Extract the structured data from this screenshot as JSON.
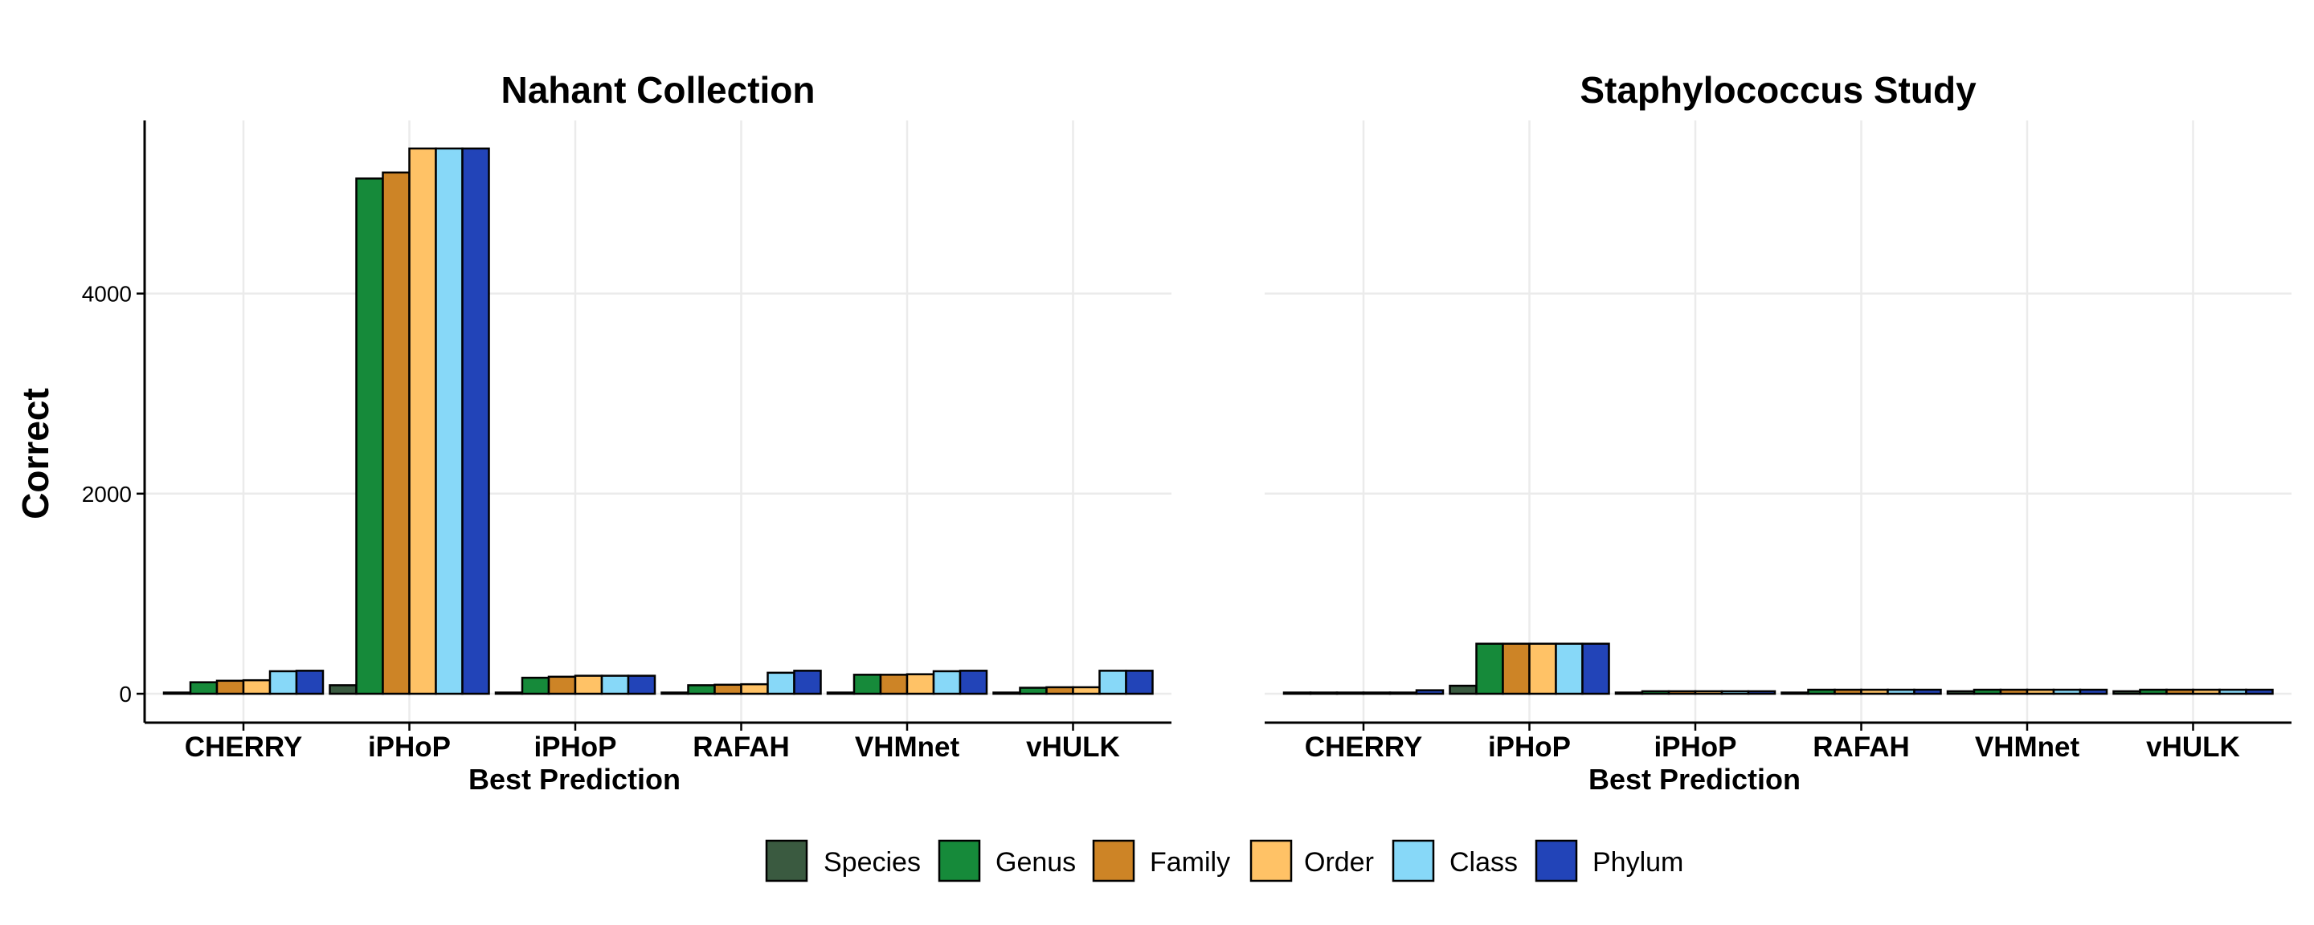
{
  "chart_data": [
    {
      "type": "bar",
      "title": "Nahant Collection",
      "xlabel": "Best Prediction",
      "ylabel": "Correct",
      "ylim": [
        0,
        5450
      ],
      "yticks": [
        0,
        2000,
        4000
      ],
      "grid": true,
      "categories": [
        "CHERRY",
        "iPHoP",
        "iPHoP",
        "RAFAH",
        "VHMnet",
        "vHULK"
      ],
      "series": [
        {
          "name": "Species",
          "color": "#3A5A40",
          "values": [
            2,
            85,
            0,
            0,
            0,
            0
          ]
        },
        {
          "name": "Genus",
          "color": "#168A3A",
          "values": [
            115,
            5150,
            160,
            85,
            190,
            60
          ]
        },
        {
          "name": "Family",
          "color": "#CD8426",
          "values": [
            130,
            5210,
            170,
            90,
            190,
            65
          ]
        },
        {
          "name": "Order",
          "color": "#FFC266",
          "values": [
            135,
            5450,
            180,
            95,
            195,
            65
          ]
        },
        {
          "name": "Class",
          "color": "#87D8F8",
          "values": [
            225,
            5450,
            180,
            210,
            225,
            230
          ]
        },
        {
          "name": "Phylum",
          "color": "#2244B8",
          "values": [
            230,
            5450,
            180,
            230,
            230,
            230
          ]
        }
      ]
    },
    {
      "type": "bar",
      "title": "Staphylococcus Study",
      "xlabel": "Best Prediction",
      "ylabel": "Correct",
      "ylim": [
        0,
        5450
      ],
      "yticks": [
        0,
        2000,
        4000
      ],
      "grid": true,
      "categories": [
        "CHERRY",
        "iPHoP",
        "iPHoP",
        "RAFAH",
        "VHMnet",
        "vHULK"
      ],
      "series": [
        {
          "name": "Species",
          "color": "#3A5A40",
          "values": [
            5,
            80,
            0,
            0,
            25,
            25
          ]
        },
        {
          "name": "Genus",
          "color": "#168A3A",
          "values": [
            10,
            500,
            25,
            40,
            40,
            40
          ]
        },
        {
          "name": "Family",
          "color": "#CD8426",
          "values": [
            10,
            500,
            25,
            40,
            40,
            40
          ]
        },
        {
          "name": "Order",
          "color": "#FFC266",
          "values": [
            10,
            500,
            25,
            40,
            40,
            40
          ]
        },
        {
          "name": "Class",
          "color": "#87D8F8",
          "values": [
            10,
            500,
            25,
            40,
            40,
            40
          ]
        },
        {
          "name": "Phylum",
          "color": "#2244B8",
          "values": [
            35,
            500,
            25,
            40,
            40,
            40
          ]
        }
      ]
    }
  ],
  "legend": {
    "position": "bottom",
    "items": [
      {
        "label": "Species",
        "color": "#3A5A40"
      },
      {
        "label": "Genus",
        "color": "#168A3A"
      },
      {
        "label": "Family",
        "color": "#CD8426"
      },
      {
        "label": "Order",
        "color": "#FFC266"
      },
      {
        "label": "Class",
        "color": "#87D8F8"
      },
      {
        "label": "Phylum",
        "color": "#2244B8"
      }
    ]
  }
}
